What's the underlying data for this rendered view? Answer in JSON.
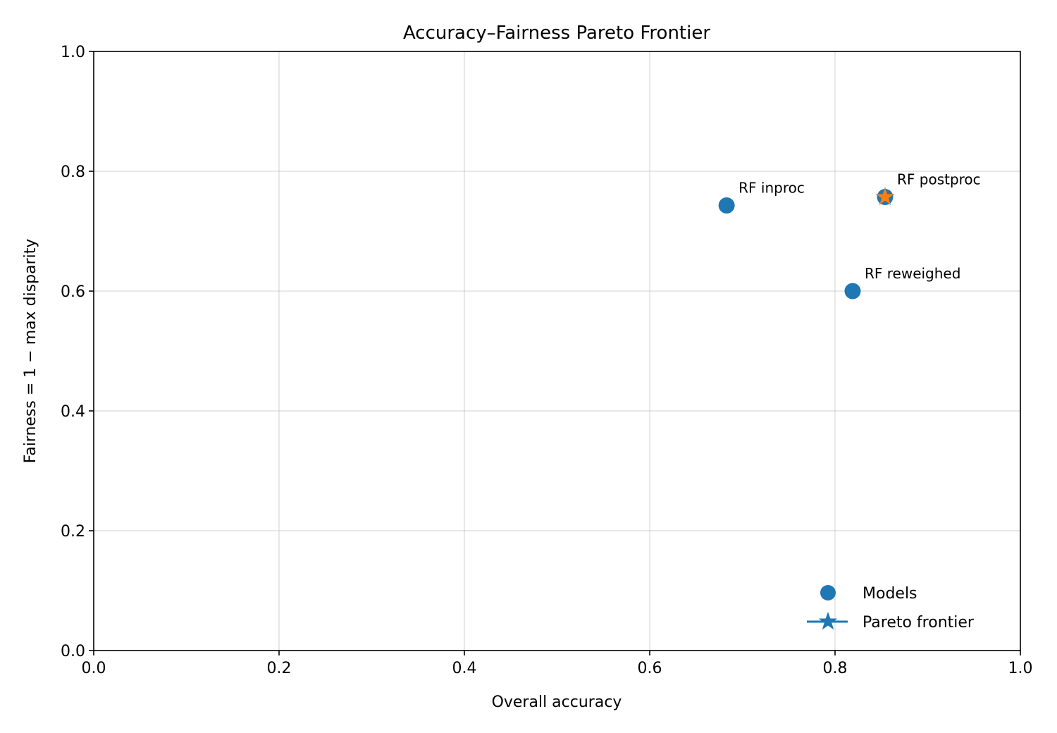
{
  "chart_data": {
    "type": "scatter",
    "title": "Accuracy–Fairness Pareto Frontier",
    "xlabel": "Overall accuracy",
    "ylabel": "Fairness = 1 − max disparity",
    "xlim": [
      0.0,
      1.0
    ],
    "ylim": [
      0.0,
      1.0
    ],
    "xticks": [
      "0.0",
      "0.2",
      "0.4",
      "0.6",
      "0.8",
      "1.0"
    ],
    "yticks": [
      "0.0",
      "0.2",
      "0.4",
      "0.6",
      "0.8",
      "1.0"
    ],
    "grid": true,
    "legend_position": "bottom-right",
    "series": [
      {
        "name": "Models",
        "marker": "circle",
        "color": "#1f77b4",
        "points": [
          {
            "x": 0.683,
            "y": 0.743,
            "label": "RF inproc"
          },
          {
            "x": 0.819,
            "y": 0.6,
            "label": "RF reweighed"
          },
          {
            "x": 0.854,
            "y": 0.757,
            "label": "RF postproc"
          }
        ]
      },
      {
        "name": "Pareto frontier",
        "marker": "star",
        "line": true,
        "color": "#1f77b4",
        "points": [
          {
            "x": 0.854,
            "y": 0.757
          }
        ]
      }
    ],
    "highlight": {
      "x": 0.854,
      "y": 0.757,
      "marker": "star",
      "color": "#ff7f0e"
    }
  }
}
